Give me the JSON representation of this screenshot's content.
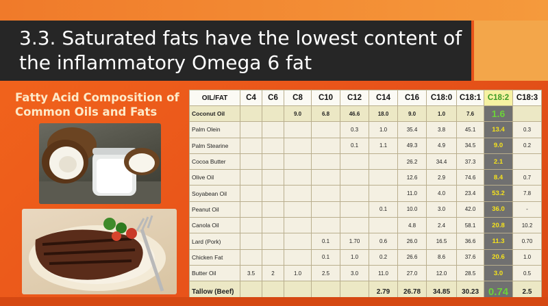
{
  "slide": {
    "title": "3.3. Saturated fats have the lowest content of the inflammatory Omega 6 fat",
    "subtitle": "Fatty Acid Composition of Common Oils and Fats",
    "colors": {
      "background": "#e8531a",
      "title_box": "#262626",
      "accent_box": "#f3a64a",
      "highlight_column": "#707070",
      "highlight_text": "#f6e31c"
    }
  },
  "images": {
    "coconut": "coconut-photo",
    "steak": "steak-photo"
  },
  "table": {
    "headers": [
      "OIL/FAT",
      "C4",
      "C6",
      "C8",
      "C10",
      "C12",
      "C14",
      "C16",
      "C18:0",
      "C18:1",
      "C18:2",
      "C18:3"
    ],
    "rows": [
      [
        "Coconut Oil",
        "",
        "",
        "9.0",
        "6.8",
        "46.6",
        "18.0",
        "9.0",
        "1.0",
        "7.6",
        "1.6",
        ""
      ],
      [
        "Palm Olein",
        "",
        "",
        "",
        "",
        "0.3",
        "1.0",
        "35.4",
        "3.8",
        "45.1",
        "13.4",
        "0.3"
      ],
      [
        "Palm Stearine",
        "",
        "",
        "",
        "",
        "0.1",
        "1.1",
        "49.3",
        "4.9",
        "34.5",
        "9.0",
        "0.2"
      ],
      [
        "Cocoa Butter",
        "",
        "",
        "",
        "",
        "",
        "",
        "26.2",
        "34.4",
        "37.3",
        "2.1",
        ""
      ],
      [
        "Olive Oil",
        "",
        "",
        "",
        "",
        "",
        "",
        "12.6",
        "2.9",
        "74.6",
        "8.4",
        "0.7"
      ],
      [
        "Soyabean Oil",
        "",
        "",
        "",
        "",
        "",
        "",
        "11.0",
        "4.0",
        "23.4",
        "53.2",
        "7.8"
      ],
      [
        "Peanut Oil",
        "",
        "",
        "",
        "",
        "",
        "0.1",
        "10.0",
        "3.0",
        "42.0",
        "36.0",
        "-"
      ],
      [
        "Canola Oil",
        "",
        "",
        "",
        "",
        "",
        "",
        "4.8",
        "2.4",
        "58.1",
        "20.8",
        "10.2"
      ],
      [
        "Lard (Pork)",
        "",
        "",
        "",
        "0.1",
        "1.70",
        "0.6",
        "26.0",
        "16.5",
        "36.6",
        "11.3",
        "0.70"
      ],
      [
        "Chicken Fat",
        "",
        "",
        "",
        "0.1",
        "1.0",
        "0.2",
        "26.6",
        "8.6",
        "37.6",
        "20.6",
        "1.0"
      ],
      [
        "Butter Oil",
        "3.5",
        "2",
        "1.0",
        "2.5",
        "3.0",
        "11.0",
        "27.0",
        "12.0",
        "28.5",
        "3.0",
        "0.5"
      ],
      [
        "Tallow (Beef)",
        "",
        "",
        "",
        "",
        "",
        "2.79",
        "26.78",
        "34.85",
        "30.23",
        "0.74",
        "2.5"
      ]
    ]
  }
}
